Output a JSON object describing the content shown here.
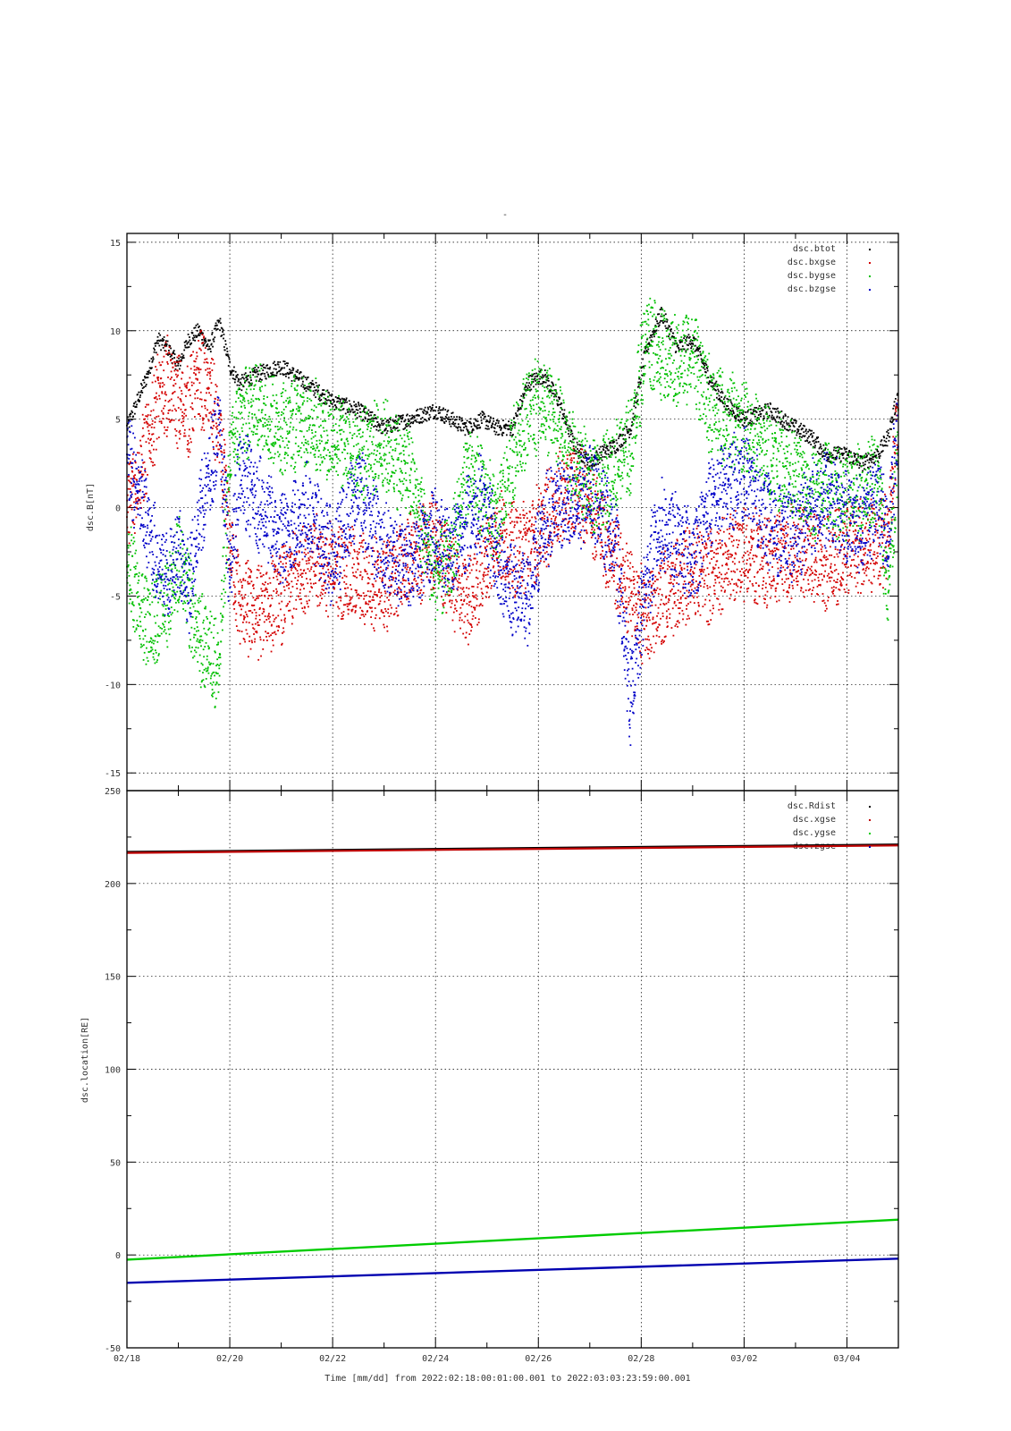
{
  "figure": {
    "title_mark": "-",
    "footer": "Time [mm/dd]  from 2022:02:18:00:01:00.001  to  2022:03:03:23:59:00.001"
  },
  "chart_data": [
    {
      "type": "scatter",
      "ylabel": "dsc.B[nT]",
      "ylim": [
        -16,
        15.5
      ],
      "yticks": [
        15,
        10,
        5,
        0,
        -5,
        -10,
        -15
      ],
      "ytick_labels": [
        "15",
        "10",
        "5",
        "0",
        "-5",
        "-10",
        "-15"
      ],
      "xlim": [
        0,
        15
      ],
      "grid": true,
      "legend_position": "top-right",
      "series": [
        {
          "name": "dsc.btot",
          "color": "#000000",
          "x": [
            0,
            0.2,
            0.4,
            0.6,
            0.8,
            1.0,
            1.2,
            1.4,
            1.6,
            1.8,
            2.0,
            2.2,
            2.5,
            3.0,
            3.5,
            4.0,
            4.5,
            5.0,
            5.5,
            6.0,
            6.3,
            6.6,
            6.9,
            7.2,
            7.5,
            7.8,
            8.1,
            8.4,
            8.7,
            9.0,
            9.2,
            9.5,
            9.8,
            10.1,
            10.4,
            10.7,
            11.0,
            11.3,
            11.6,
            12.0,
            12.5,
            13.0,
            13.3,
            13.6,
            14.0,
            14.3,
            14.6,
            14.8,
            15.0
          ],
          "y": [
            4.5,
            6.0,
            7.5,
            9.5,
            9.0,
            8.0,
            9.5,
            10.0,
            9.0,
            10.5,
            8.0,
            7.0,
            7.5,
            8.0,
            7.0,
            6.0,
            5.5,
            4.5,
            5.0,
            5.5,
            5.0,
            4.5,
            5.0,
            4.5,
            4.5,
            7.0,
            7.5,
            6.0,
            3.5,
            2.5,
            3.0,
            3.5,
            4.5,
            9.0,
            11.0,
            9.0,
            9.5,
            7.5,
            6.0,
            5.0,
            5.5,
            4.5,
            4.0,
            3.0,
            3.0,
            2.5,
            3.0,
            4.0,
            6.5
          ]
        },
        {
          "name": "dsc.bxgse",
          "color": "#d40000",
          "x": [
            0,
            0.2,
            0.4,
            0.6,
            0.8,
            1.0,
            1.2,
            1.4,
            1.6,
            1.8,
            2.0,
            2.2,
            2.5,
            3.0,
            3.5,
            4.0,
            4.5,
            5.0,
            5.5,
            6.0,
            6.3,
            6.6,
            6.9,
            7.2,
            7.5,
            7.8,
            8.1,
            8.4,
            8.7,
            9.0,
            9.2,
            9.5,
            9.8,
            10.1,
            10.4,
            10.7,
            11.0,
            11.3,
            11.6,
            12.0,
            12.5,
            13.0,
            13.3,
            13.6,
            14.0,
            14.3,
            14.6,
            14.8,
            15.0
          ],
          "y": [
            0.0,
            1.5,
            3.5,
            6.0,
            7.0,
            6.0,
            5.5,
            7.5,
            6.5,
            4.0,
            -2.0,
            -5.5,
            -6.0,
            -5.0,
            -3.0,
            -3.5,
            -4.0,
            -4.5,
            -3.0,
            -2.0,
            -4.0,
            -5.5,
            -3.5,
            -1.5,
            -2.5,
            -2.0,
            -1.0,
            0.5,
            1.0,
            0.5,
            -1.0,
            -3.0,
            -5.0,
            -6.5,
            -5.0,
            -4.5,
            -3.5,
            -4.0,
            -3.0,
            -2.5,
            -3.0,
            -2.5,
            -2.8,
            -3.0,
            -2.5,
            -2.0,
            -2.5,
            -1.5,
            4.5
          ]
        },
        {
          "name": "dsc.bygse",
          "color": "#00c000",
          "x": [
            0,
            0.2,
            0.4,
            0.6,
            0.8,
            1.0,
            1.2,
            1.4,
            1.6,
            1.8,
            2.0,
            2.2,
            2.5,
            3.0,
            3.5,
            4.0,
            4.5,
            5.0,
            5.5,
            6.0,
            6.3,
            6.6,
            6.9,
            7.2,
            7.5,
            7.8,
            8.1,
            8.4,
            8.7,
            9.0,
            9.2,
            9.5,
            9.8,
            10.1,
            10.4,
            10.7,
            11.0,
            11.3,
            11.6,
            12.0,
            12.5,
            13.0,
            13.3,
            13.6,
            14.0,
            14.3,
            14.6,
            14.8,
            15.0
          ],
          "y": [
            -3.0,
            -5.0,
            -6.5,
            -6.0,
            -5.0,
            -3.0,
            -5.0,
            -7.5,
            -8.0,
            -9.0,
            3.0,
            5.0,
            6.0,
            4.5,
            5.0,
            4.0,
            3.0,
            3.5,
            2.0,
            -4.0,
            -3.0,
            2.0,
            1.0,
            -1.0,
            3.0,
            5.5,
            6.0,
            4.5,
            2.5,
            1.5,
            1.0,
            2.5,
            3.5,
            10.0,
            8.5,
            8.0,
            9.0,
            6.0,
            5.0,
            4.5,
            3.0,
            2.0,
            0.5,
            1.5,
            0.5,
            1.0,
            2.0,
            -5.0,
            3.5
          ]
        },
        {
          "name": "dsc.bzgse",
          "color": "#0000c8",
          "x": [
            0,
            0.2,
            0.4,
            0.6,
            0.8,
            1.0,
            1.2,
            1.4,
            1.6,
            1.8,
            2.0,
            2.2,
            2.5,
            3.0,
            3.5,
            4.0,
            4.5,
            5.0,
            5.5,
            6.0,
            6.3,
            6.6,
            6.9,
            7.2,
            7.5,
            7.8,
            8.1,
            8.4,
            8.7,
            9.0,
            9.2,
            9.5,
            9.8,
            10.1,
            10.4,
            10.7,
            11.0,
            11.3,
            11.6,
            12.0,
            12.5,
            13.0,
            13.3,
            13.6,
            14.0,
            14.3,
            14.6,
            14.8,
            15.0
          ],
          "y": [
            3.0,
            1.0,
            -1.0,
            -3.0,
            -4.0,
            -2.0,
            -4.5,
            -1.0,
            2.0,
            5.0,
            -4.0,
            2.0,
            0.5,
            -2.0,
            0.0,
            -3.0,
            1.0,
            -2.5,
            -3.0,
            -1.5,
            -2.5,
            -1.0,
            0.5,
            -3.0,
            -4.5,
            -5.5,
            -1.0,
            0.5,
            -0.5,
            1.5,
            0.0,
            -2.0,
            -11.0,
            -4.0,
            -1.0,
            -2.0,
            -3.0,
            0.0,
            1.0,
            2.0,
            -1.0,
            -1.5,
            0.0,
            0.5,
            -0.5,
            -1.0,
            0.5,
            -2.0,
            5.5
          ]
        }
      ]
    },
    {
      "type": "line",
      "ylabel": "dsc.location[RE]",
      "ylim": [
        -50,
        250
      ],
      "yticks": [
        250,
        200,
        150,
        100,
        50,
        0,
        -50
      ],
      "ytick_labels": [
        "250",
        "200",
        "150",
        "100",
        "50",
        "0",
        "-50"
      ],
      "xlim": [
        0,
        15
      ],
      "xticks": [
        0,
        2,
        4,
        6,
        8,
        10,
        12,
        14
      ],
      "xtick_labels": [
        "02/18",
        "02/20",
        "02/22",
        "02/24",
        "02/26",
        "02/28",
        "03/02",
        "03/04"
      ],
      "grid": true,
      "legend_position": "top-right",
      "series": [
        {
          "name": "dsc.Rdist",
          "color": "#000000",
          "x": [
            0,
            15
          ],
          "y": [
            217,
            221
          ]
        },
        {
          "name": "dsc.xgse",
          "color": "#c00000",
          "x": [
            0,
            15
          ],
          "y": [
            216.5,
            220.5
          ]
        },
        {
          "name": "dsc.ygse",
          "color": "#00cc00",
          "x": [
            0,
            15
          ],
          "y": [
            -2.5,
            19
          ]
        },
        {
          "name": "dsc.zgse",
          "color": "#0000b0",
          "x": [
            0,
            15
          ],
          "y": [
            -15,
            -2
          ]
        }
      ]
    }
  ]
}
